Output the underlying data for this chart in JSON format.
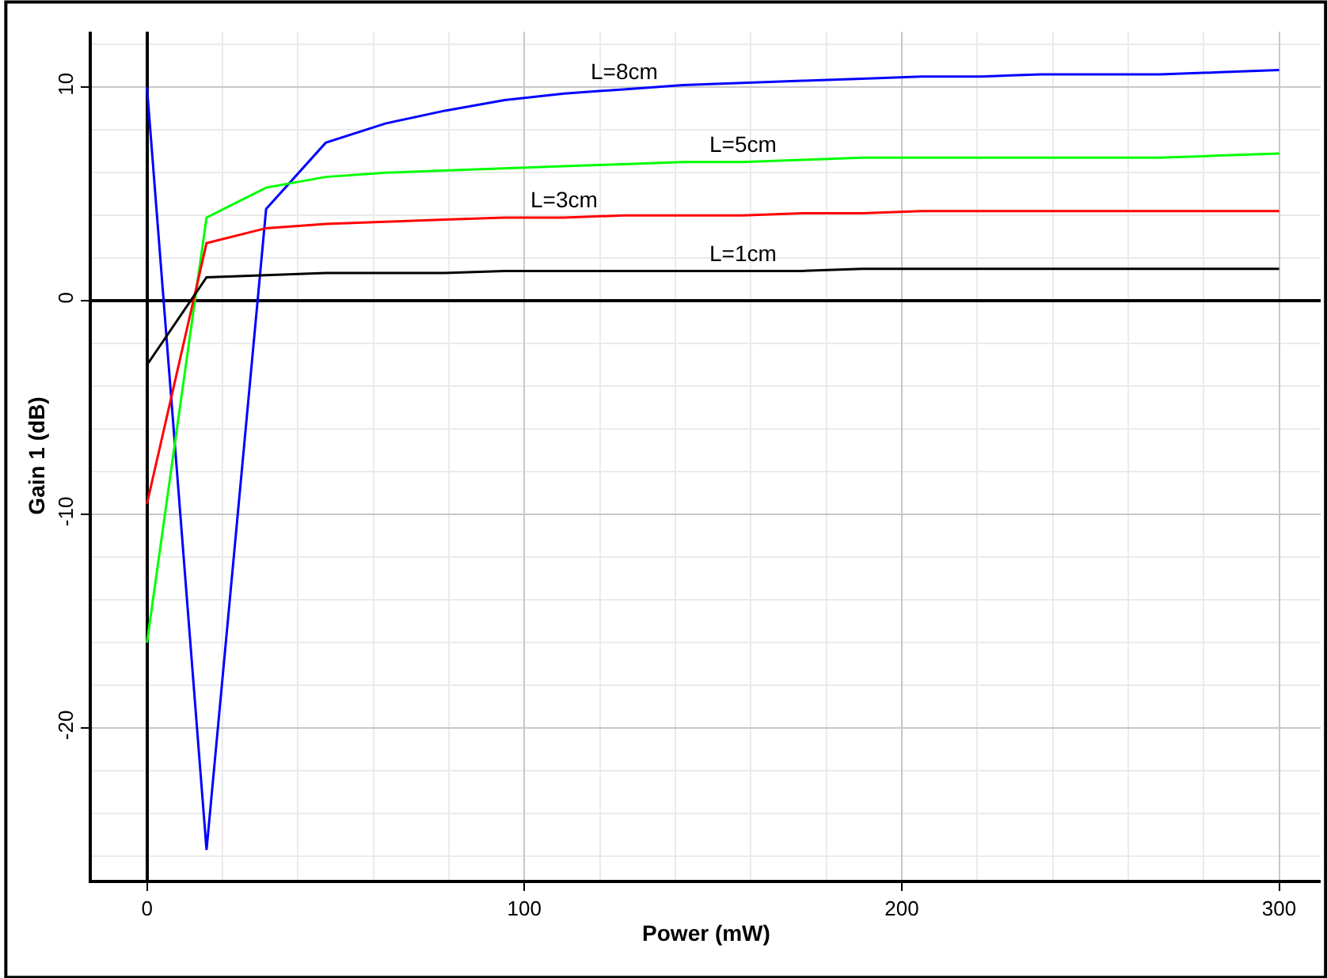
{
  "chart_data": {
    "type": "line",
    "xlabel": "Power (mW)",
    "ylabel": "Gain 1 (dB)",
    "x": [
      0,
      15.79,
      31.58,
      47.37,
      63.16,
      78.95,
      94.74,
      110.53,
      126.32,
      142.11,
      157.89,
      173.68,
      189.47,
      205.26,
      221.05,
      236.84,
      252.63,
      268.42,
      284.21,
      300
    ],
    "series": [
      {
        "name": "L=8cm",
        "color": "#0000ff",
        "values": [
          10.0,
          -25.7,
          4.3,
          7.4,
          8.3,
          8.9,
          9.4,
          9.7,
          9.9,
          10.1,
          10.2,
          10.3,
          10.4,
          10.5,
          10.5,
          10.6,
          10.6,
          10.6,
          10.7,
          10.8
        ]
      },
      {
        "name": "L=5cm",
        "color": "#00ff00",
        "values": [
          -16.0,
          3.9,
          5.3,
          5.8,
          6.0,
          6.1,
          6.2,
          6.3,
          6.4,
          6.5,
          6.5,
          6.6,
          6.7,
          6.7,
          6.7,
          6.7,
          6.7,
          6.7,
          6.8,
          6.9
        ]
      },
      {
        "name": "L=3cm",
        "color": "#ff0000",
        "values": [
          -9.5,
          2.7,
          3.4,
          3.6,
          3.7,
          3.8,
          3.9,
          3.9,
          4.0,
          4.0,
          4.0,
          4.1,
          4.1,
          4.2,
          4.2,
          4.2,
          4.2,
          4.2,
          4.2,
          4.2
        ]
      },
      {
        "name": "L=1cm",
        "color": "#000000",
        "values": [
          -3.0,
          1.1,
          1.2,
          1.3,
          1.3,
          1.3,
          1.4,
          1.4,
          1.4,
          1.4,
          1.4,
          1.4,
          1.5,
          1.5,
          1.5,
          1.5,
          1.5,
          1.5,
          1.5,
          1.5
        ]
      }
    ],
    "xlim": [
      -14.6,
      311
    ],
    "ylim": [
      -27.1,
      12.6
    ],
    "xticks": [
      0,
      100,
      200,
      300
    ],
    "yticks": [
      -20,
      -10,
      0,
      10
    ],
    "grid": true,
    "legend": false,
    "marker": "none",
    "line_style": "solid"
  }
}
